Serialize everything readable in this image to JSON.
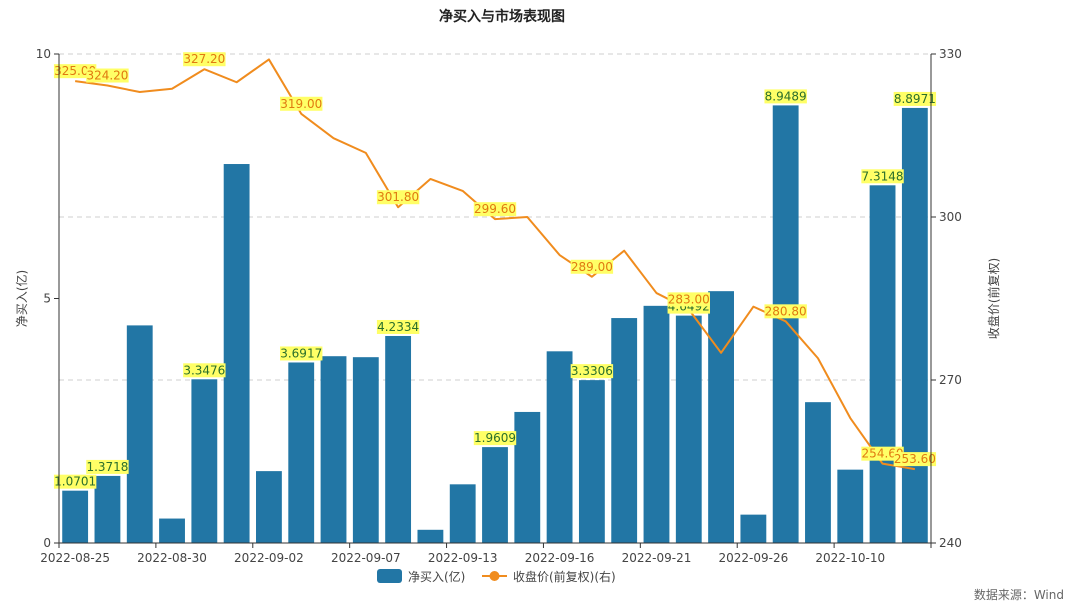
{
  "chart_data": {
    "type": "bar+line",
    "title": "净买入与市场表现图",
    "left_axis": {
      "label": "净买入(亿)",
      "ylim": [
        0,
        10
      ],
      "ticks": [
        "0",
        "5",
        "10"
      ]
    },
    "right_axis": {
      "label": "收盘价(前复权)",
      "ylim": [
        240,
        330
      ],
      "ticks": [
        "240",
        "270",
        "300",
        "330"
      ]
    },
    "x_tick_labels": [
      "2022-08-25",
      "2022-08-30",
      "2022-09-02",
      "2022-09-07",
      "2022-09-13",
      "2022-09-16",
      "2022-09-21",
      "2022-09-26",
      "2022-10-10"
    ],
    "grid": "horizontal-dashed",
    "legend_position": "bottom-center",
    "series": [
      {
        "name": "净买入(亿)",
        "type": "bar",
        "color": "#2276a5",
        "values": [
          1.0701,
          1.3718,
          4.45,
          0.5,
          3.3476,
          7.75,
          1.47,
          3.6917,
          3.82,
          3.8,
          4.2334,
          0.27,
          1.2,
          1.9609,
          2.68,
          3.92,
          3.3306,
          4.6,
          4.85,
          4.65,
          5.15,
          0.58,
          8.9489,
          2.88,
          1.5,
          7.3148,
          8.8971
        ],
        "labels": [
          "1.0701",
          "1.3718",
          "",
          "",
          "3.3476",
          "",
          "",
          "3.6917",
          "",
          "",
          "4.2334",
          "",
          "",
          "1.9609",
          "",
          "",
          "3.3306",
          "",
          "",
          "4.6492",
          "",
          "",
          "8.9489",
          "",
          "",
          "7.3148",
          "8.8971"
        ]
      },
      {
        "name": "收盘价(前复权)(右)",
        "type": "line",
        "color": "#f08c1e",
        "values": [
          325.0,
          324.2,
          323.0,
          323.6,
          327.2,
          324.8,
          329.0,
          319.0,
          314.5,
          311.8,
          301.8,
          307.0,
          304.8,
          299.6,
          300.0,
          293.0,
          289.0,
          293.8,
          286.0,
          283.0,
          275.0,
          283.5,
          280.8,
          274.0,
          263.0,
          254.6,
          253.6
        ],
        "labels": [
          "325.00",
          "324.20",
          "",
          "",
          "327.20",
          "",
          "",
          "319.00",
          "",
          "",
          "301.80",
          "",
          "",
          "299.60",
          "",
          "",
          "289.00",
          "",
          "",
          "283.00",
          "",
          "",
          "280.80",
          "",
          "",
          "254.60",
          "253.60"
        ]
      }
    ],
    "label_bg_color": "#ffff66"
  },
  "legend": {
    "bar_label": "净买入(亿)",
    "line_label": "收盘价(前复权)(右)"
  },
  "source_text": "数据来源：Wind"
}
